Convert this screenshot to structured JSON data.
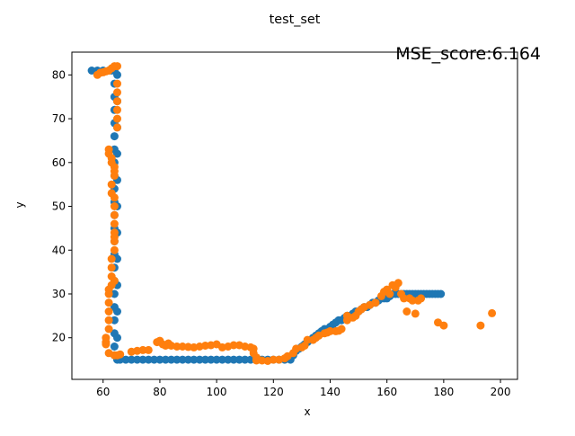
{
  "chart_data": {
    "type": "scatter",
    "title": "test_set",
    "xlabel": "x",
    "ylabel": "y",
    "xlim": [
      49,
      206
    ],
    "ylim": [
      10.5,
      85.2
    ],
    "xticks": [
      60,
      80,
      100,
      120,
      140,
      160,
      180,
      200
    ],
    "yticks": [
      20,
      30,
      40,
      50,
      60,
      70,
      80
    ],
    "grid": false,
    "annotation": "MSE_score:6.164",
    "colors": {
      "series_1": "#1f77b4",
      "series_2": "#ff7f0e"
    },
    "series": [
      {
        "points": [
          [
            56,
            81
          ],
          [
            58,
            81
          ],
          [
            60,
            81
          ],
          [
            62,
            81
          ],
          [
            63,
            81
          ],
          [
            64,
            81
          ],
          [
            64,
            78
          ],
          [
            64,
            75
          ],
          [
            64,
            72
          ],
          [
            64,
            69
          ],
          [
            64,
            66
          ],
          [
            64,
            63
          ],
          [
            64,
            60
          ],
          [
            64,
            57
          ],
          [
            64,
            54
          ],
          [
            64,
            51
          ],
          [
            64,
            48
          ],
          [
            64,
            45
          ],
          [
            64,
            42
          ],
          [
            64,
            39
          ],
          [
            64,
            36
          ],
          [
            64,
            33
          ],
          [
            64,
            30
          ],
          [
            64,
            27
          ],
          [
            64,
            24
          ],
          [
            64,
            21
          ],
          [
            64,
            18
          ],
          [
            64,
            16
          ],
          [
            65,
            80
          ],
          [
            65,
            74
          ],
          [
            65,
            68
          ],
          [
            65,
            62
          ],
          [
            65,
            56
          ],
          [
            65,
            50
          ],
          [
            65,
            44
          ],
          [
            65,
            38
          ],
          [
            65,
            32
          ],
          [
            65,
            26
          ],
          [
            65,
            20
          ],
          [
            65,
            15
          ],
          [
            66,
            15
          ],
          [
            68,
            15
          ],
          [
            70,
            15
          ],
          [
            72,
            15
          ],
          [
            74,
            15
          ],
          [
            76,
            15
          ],
          [
            78,
            15
          ],
          [
            80,
            15
          ],
          [
            82,
            15
          ],
          [
            84,
            15
          ],
          [
            86,
            15
          ],
          [
            88,
            15
          ],
          [
            90,
            15
          ],
          [
            92,
            15
          ],
          [
            94,
            15
          ],
          [
            96,
            15
          ],
          [
            98,
            15
          ],
          [
            100,
            15
          ],
          [
            102,
            15
          ],
          [
            104,
            15
          ],
          [
            106,
            15
          ],
          [
            108,
            15
          ],
          [
            110,
            15
          ],
          [
            112,
            15
          ],
          [
            114,
            15
          ],
          [
            116,
            15
          ],
          [
            118,
            15
          ],
          [
            120,
            15
          ],
          [
            122,
            15
          ],
          [
            124,
            15
          ],
          [
            126,
            15
          ],
          [
            127,
            16
          ],
          [
            128,
            17
          ],
          [
            129,
            17.5
          ],
          [
            130,
            18
          ],
          [
            131,
            18.5
          ],
          [
            132,
            19
          ],
          [
            133,
            19.5
          ],
          [
            134,
            20
          ],
          [
            135,
            20.5
          ],
          [
            136,
            21
          ],
          [
            137,
            21.5
          ],
          [
            138,
            22
          ],
          [
            139,
            22
          ],
          [
            140,
            22.5
          ],
          [
            141,
            23
          ],
          [
            142,
            23.5
          ],
          [
            143,
            24
          ],
          [
            144,
            24
          ],
          [
            145,
            24.5
          ],
          [
            146,
            25
          ],
          [
            147,
            25
          ],
          [
            148,
            25.5
          ],
          [
            149,
            26
          ],
          [
            150,
            26
          ],
          [
            151,
            26.5
          ],
          [
            152,
            27
          ],
          [
            153,
            27
          ],
          [
            154,
            27.5
          ],
          [
            155,
            28
          ],
          [
            156,
            28
          ],
          [
            157,
            28.5
          ],
          [
            158,
            29
          ],
          [
            159,
            29
          ],
          [
            160,
            29
          ],
          [
            161,
            29.5
          ],
          [
            162,
            30
          ],
          [
            163,
            30
          ],
          [
            164,
            30
          ],
          [
            165,
            30
          ],
          [
            166,
            30
          ],
          [
            167,
            30
          ],
          [
            168,
            30
          ],
          [
            169,
            30
          ],
          [
            170,
            30
          ],
          [
            171,
            30
          ],
          [
            172,
            30
          ],
          [
            173,
            30
          ],
          [
            174,
            30
          ],
          [
            175,
            30
          ],
          [
            176,
            30
          ],
          [
            177,
            30
          ],
          [
            178,
            30
          ],
          [
            179,
            30
          ]
        ]
      },
      {
        "points": [
          [
            58,
            80
          ],
          [
            59,
            80.5
          ],
          [
            60,
            80.6
          ],
          [
            61,
            80.8
          ],
          [
            62,
            81
          ],
          [
            63,
            81.5
          ],
          [
            64,
            82
          ],
          [
            65,
            82
          ],
          [
            65,
            78
          ],
          [
            65,
            76
          ],
          [
            65,
            74
          ],
          [
            65,
            72
          ],
          [
            65,
            70
          ],
          [
            65,
            68
          ],
          [
            62,
            63
          ],
          [
            62,
            62
          ],
          [
            63,
            61
          ],
          [
            63,
            60
          ],
          [
            64,
            59
          ],
          [
            64,
            58
          ],
          [
            64,
            57
          ],
          [
            63,
            55
          ],
          [
            63,
            53
          ],
          [
            64,
            52
          ],
          [
            64,
            50
          ],
          [
            64,
            48
          ],
          [
            64,
            46
          ],
          [
            64,
            44
          ],
          [
            64,
            43
          ],
          [
            64,
            42
          ],
          [
            64,
            40
          ],
          [
            63,
            38
          ],
          [
            63,
            36
          ],
          [
            63,
            34
          ],
          [
            64,
            33
          ],
          [
            63,
            32
          ],
          [
            62,
            31
          ],
          [
            62,
            30
          ],
          [
            62,
            28
          ],
          [
            62,
            26
          ],
          [
            62,
            24
          ],
          [
            62,
            22
          ],
          [
            61,
            20
          ],
          [
            61,
            19
          ],
          [
            61,
            18.5
          ],
          [
            62,
            16.5
          ],
          [
            64,
            16
          ],
          [
            65,
            16
          ],
          [
            66,
            16.2
          ],
          [
            70,
            16.8
          ],
          [
            72,
            17
          ],
          [
            74,
            17.2
          ],
          [
            76,
            17.2
          ],
          [
            79,
            19
          ],
          [
            80,
            19.3
          ],
          [
            81,
            18.5
          ],
          [
            82,
            18.2
          ],
          [
            83,
            18.7
          ],
          [
            84,
            18.2
          ],
          [
            86,
            18
          ],
          [
            88,
            18
          ],
          [
            90,
            17.9
          ],
          [
            92,
            17.8
          ],
          [
            94,
            18
          ],
          [
            96,
            18.2
          ],
          [
            98,
            18.3
          ],
          [
            100,
            18.5
          ],
          [
            102,
            17.8
          ],
          [
            104,
            18
          ],
          [
            106,
            18.3
          ],
          [
            108,
            18.3
          ],
          [
            110,
            18
          ],
          [
            112,
            17.8
          ],
          [
            113,
            17.5
          ],
          [
            113,
            16.5
          ],
          [
            114,
            15.5
          ],
          [
            114,
            14.8
          ],
          [
            116,
            14.8
          ],
          [
            118,
            14.7
          ],
          [
            120,
            15
          ],
          [
            122,
            15
          ],
          [
            124,
            15.3
          ],
          [
            125,
            15.8
          ],
          [
            127,
            16.5
          ],
          [
            128,
            17.5
          ],
          [
            130,
            17.8
          ],
          [
            131,
            18.2
          ],
          [
            132,
            19.5
          ],
          [
            134,
            19.5
          ],
          [
            135,
            20
          ],
          [
            136,
            20.5
          ],
          [
            138,
            21
          ],
          [
            139,
            21.2
          ],
          [
            140,
            21.5
          ],
          [
            142,
            21.5
          ],
          [
            143,
            21.6
          ],
          [
            144,
            22
          ],
          [
            146,
            24
          ],
          [
            146,
            25
          ],
          [
            148,
            24.6
          ],
          [
            149,
            25
          ],
          [
            150,
            26
          ],
          [
            151,
            26.5
          ],
          [
            152,
            27
          ],
          [
            154,
            27.5
          ],
          [
            156,
            28
          ],
          [
            158,
            29.5
          ],
          [
            159,
            30.5
          ],
          [
            160,
            31
          ],
          [
            161,
            30
          ],
          [
            162,
            32
          ],
          [
            163,
            31.5
          ],
          [
            164,
            32.5
          ],
          [
            165,
            30
          ],
          [
            166,
            29
          ],
          [
            167,
            26
          ],
          [
            168,
            29
          ],
          [
            169,
            28.5
          ],
          [
            170,
            25.5
          ],
          [
            171,
            28.5
          ],
          [
            172,
            29
          ],
          [
            178,
            23.5
          ],
          [
            180,
            22.8
          ],
          [
            193,
            22.8
          ],
          [
            197,
            25.6
          ]
        ]
      }
    ]
  }
}
